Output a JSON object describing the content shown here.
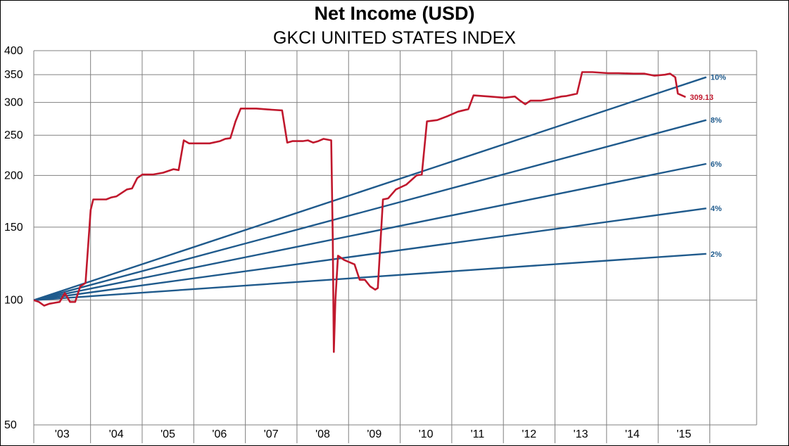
{
  "chart_data": {
    "type": "line",
    "title": "Net Income (USD)",
    "subtitle": "GKCI UNITED STATES INDEX",
    "y_scale": "log",
    "ylim": [
      50,
      400
    ],
    "y_ticks": [
      50,
      100,
      150,
      200,
      250,
      300,
      350,
      400
    ],
    "x_ticks": [
      "'03",
      "'04",
      "'05",
      "'06",
      "'07",
      "'08",
      "'09",
      "'10",
      "'11",
      "'12",
      "'13",
      "'14",
      "'15"
    ],
    "grid": true,
    "colors": {
      "index": "#c0182d",
      "growth": "#1f5a8c"
    },
    "series": [
      {
        "role": "index",
        "end_label": "309.13",
        "points": [
          [
            2002.7,
            100
          ],
          [
            2002.8,
            99
          ],
          [
            2002.9,
            97
          ],
          [
            2003.0,
            98
          ],
          [
            2003.1,
            98.5
          ],
          [
            2003.2,
            99
          ],
          [
            2003.3,
            104
          ],
          [
            2003.4,
            99
          ],
          [
            2003.5,
            99
          ],
          [
            2003.6,
            108
          ],
          [
            2003.7,
            110
          ],
          [
            2003.8,
            165
          ],
          [
            2003.85,
            175
          ],
          [
            2004.0,
            175
          ],
          [
            2004.1,
            175
          ],
          [
            2004.2,
            177
          ],
          [
            2004.3,
            178
          ],
          [
            2004.5,
            185
          ],
          [
            2004.6,
            186
          ],
          [
            2004.7,
            197
          ],
          [
            2004.8,
            201
          ],
          [
            2005.0,
            201
          ],
          [
            2005.2,
            203
          ],
          [
            2005.4,
            207
          ],
          [
            2005.5,
            206
          ],
          [
            2005.6,
            243
          ],
          [
            2005.7,
            239
          ],
          [
            2005.9,
            239
          ],
          [
            2006.1,
            239
          ],
          [
            2006.3,
            242
          ],
          [
            2006.4,
            245
          ],
          [
            2006.5,
            246
          ],
          [
            2006.6,
            270
          ],
          [
            2006.7,
            290
          ],
          [
            2007.0,
            290
          ],
          [
            2007.3,
            288
          ],
          [
            2007.5,
            287
          ],
          [
            2007.6,
            240
          ],
          [
            2007.7,
            242
          ],
          [
            2007.9,
            242
          ],
          [
            2008.0,
            243
          ],
          [
            2008.1,
            240
          ],
          [
            2008.2,
            242
          ],
          [
            2008.3,
            245
          ],
          [
            2008.45,
            243
          ],
          [
            2008.48,
            140
          ],
          [
            2008.5,
            75
          ],
          [
            2008.53,
            100
          ],
          [
            2008.58,
            128
          ],
          [
            2008.7,
            125
          ],
          [
            2008.9,
            122
          ],
          [
            2009.0,
            112
          ],
          [
            2009.1,
            112
          ],
          [
            2009.2,
            108
          ],
          [
            2009.3,
            106
          ],
          [
            2009.35,
            107
          ],
          [
            2009.45,
            175
          ],
          [
            2009.55,
            176
          ],
          [
            2009.7,
            185
          ],
          [
            2009.9,
            190
          ],
          [
            2010.1,
            200
          ],
          [
            2010.2,
            201
          ],
          [
            2010.3,
            270
          ],
          [
            2010.5,
            272
          ],
          [
            2010.7,
            278
          ],
          [
            2010.9,
            285
          ],
          [
            2011.1,
            289
          ],
          [
            2011.2,
            312
          ],
          [
            2011.5,
            310
          ],
          [
            2011.8,
            308
          ],
          [
            2012.0,
            310
          ],
          [
            2012.1,
            303
          ],
          [
            2012.2,
            297
          ],
          [
            2012.3,
            303
          ],
          [
            2012.5,
            303
          ],
          [
            2012.7,
            306
          ],
          [
            2012.9,
            310
          ],
          [
            2013.0,
            311
          ],
          [
            2013.2,
            315
          ],
          [
            2013.3,
            355
          ],
          [
            2013.5,
            355
          ],
          [
            2013.8,
            353
          ],
          [
            2014.0,
            353
          ],
          [
            2014.3,
            352
          ],
          [
            2014.5,
            352
          ],
          [
            2014.7,
            348
          ],
          [
            2014.9,
            350
          ],
          [
            2015.0,
            352
          ],
          [
            2015.1,
            345
          ],
          [
            2015.15,
            315
          ],
          [
            2015.3,
            309.13
          ]
        ]
      }
    ],
    "growth_lines": [
      {
        "label": "10%",
        "rate": 0.1
      },
      {
        "label": "8%",
        "rate": 0.08
      },
      {
        "label": "6%",
        "rate": 0.06
      },
      {
        "label": "4%",
        "rate": 0.04
      },
      {
        "label": "2%",
        "rate": 0.02
      }
    ],
    "growth_base": 100,
    "growth_start": 2002.7,
    "growth_end": 2015.7
  }
}
